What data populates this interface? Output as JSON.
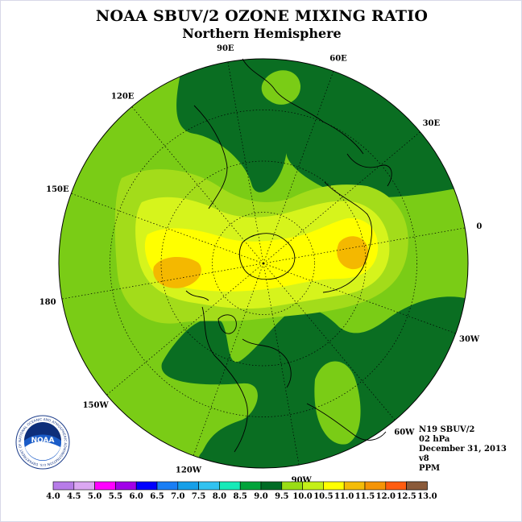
{
  "title": "NOAA SBUV/2 OZONE MIXING RATIO",
  "subtitle": "Northern Hemisphere",
  "longitude_labels": [
    "90E",
    "60E",
    "30E",
    "0",
    "30W",
    "60W",
    "90W",
    "120W",
    "150W",
    "180",
    "150E",
    "120E"
  ],
  "info": {
    "instrument": "N19 SBUV/2",
    "pressure_level": "02 hPa",
    "date": "December 31, 2013",
    "version": "v8",
    "units": "PPM"
  },
  "logo_text": "NATIONAL OCEANIC AND ATMOSPHERIC ADMINISTRATION U.S. DEPARTMENT OF COMMERCE",
  "logo_word": "NOAA",
  "colorbar": {
    "ticks": [
      "4.0",
      "4.5",
      "5.0",
      "5.5",
      "6.0",
      "6.5",
      "7.0",
      "7.5",
      "8.0",
      "8.5",
      "9.0",
      "9.5",
      "10.0",
      "10.5",
      "11.0",
      "11.5",
      "12.0",
      "12.5",
      "13.0"
    ],
    "colors": [
      "#b77ce8",
      "#dba7f2",
      "#ff00ff",
      "#a100e8",
      "#0000ff",
      "#1a7ef5",
      "#169fe8",
      "#31c2f0",
      "#17eab8",
      "#00a33a",
      "#006b25",
      "#99dd15",
      "#c4f018",
      "#ffff00",
      "#f4bc08",
      "#f59406",
      "#ff5c10",
      "#ee0000",
      "#8a5a3a"
    ]
  },
  "legend_colors": {
    "c8_5": "#0a6e22",
    "c9_0": "#7acc16",
    "c9_5": "#a3dc1a",
    "c10_0": "#d6f41c",
    "c10_5": "#ffff00",
    "c11_0": "#f4b800"
  }
}
